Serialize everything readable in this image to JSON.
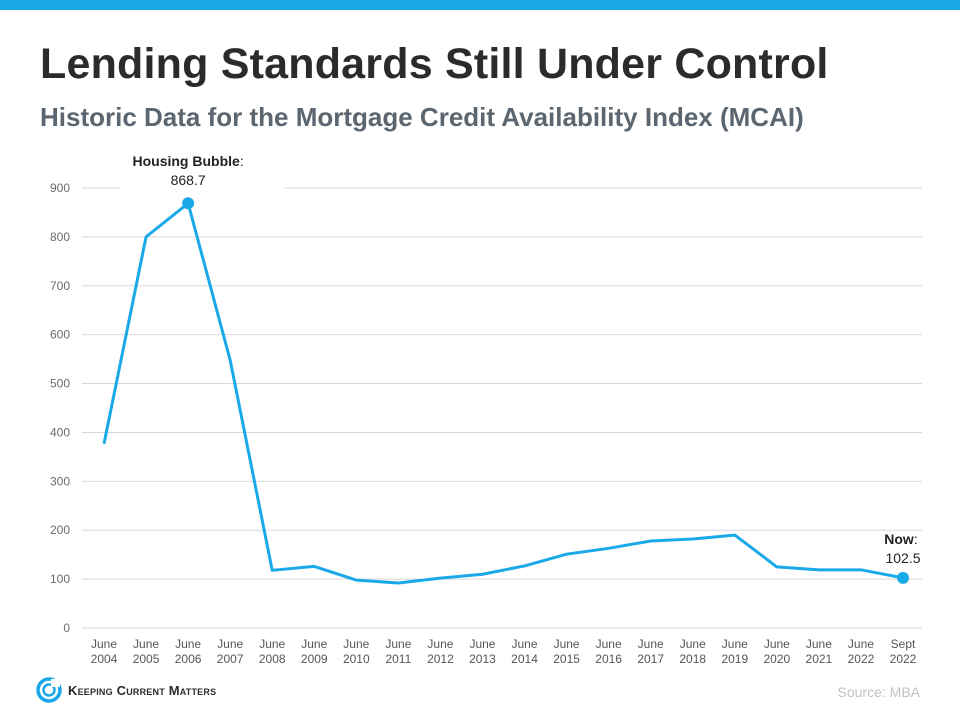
{
  "header": {
    "title": "Lending Standards Still Under Control",
    "subtitle": "Historic Data for the Mortgage Credit Availability Index (MCAI)"
  },
  "colors": {
    "accent": "#1aa9e8",
    "line": "#1aa9e8",
    "grid": "#d9d9d9"
  },
  "chart_data": {
    "type": "line",
    "title": "",
    "xlabel": "",
    "ylabel": "",
    "categories": [
      [
        "June",
        "2004"
      ],
      [
        "June",
        "2005"
      ],
      [
        "June",
        "2006"
      ],
      [
        "June",
        "2007"
      ],
      [
        "June",
        "2008"
      ],
      [
        "June",
        "2009"
      ],
      [
        "June",
        "2010"
      ],
      [
        "June",
        "2011"
      ],
      [
        "June",
        "2012"
      ],
      [
        "June",
        "2013"
      ],
      [
        "June",
        "2014"
      ],
      [
        "June",
        "2015"
      ],
      [
        "June",
        "2016"
      ],
      [
        "June",
        "2017"
      ],
      [
        "June",
        "2018"
      ],
      [
        "June",
        "2019"
      ],
      [
        "June",
        "2020"
      ],
      [
        "June",
        "2021"
      ],
      [
        "June",
        "2022"
      ],
      [
        "Sept",
        "2022"
      ]
    ],
    "values": [
      377,
      800,
      868.7,
      548,
      118,
      126,
      98,
      92,
      102,
      110,
      127,
      151,
      163,
      178,
      182,
      190,
      125,
      119,
      119,
      102.5
    ],
    "ylim": [
      0,
      900
    ],
    "yticks": [
      0,
      100,
      200,
      300,
      400,
      500,
      600,
      700,
      800,
      900
    ],
    "grid": true,
    "annotations": [
      {
        "point_index": 2,
        "label": "Housing Bubble",
        "suffix": ":",
        "value": "868.7"
      },
      {
        "point_index": 19,
        "label": "Now",
        "suffix": ":",
        "value": "102.5"
      }
    ]
  },
  "footer": {
    "logo_text": "Keeping Current Matters",
    "logo_icon": "kcm-swirl-icon",
    "source": "Source: MBA"
  }
}
